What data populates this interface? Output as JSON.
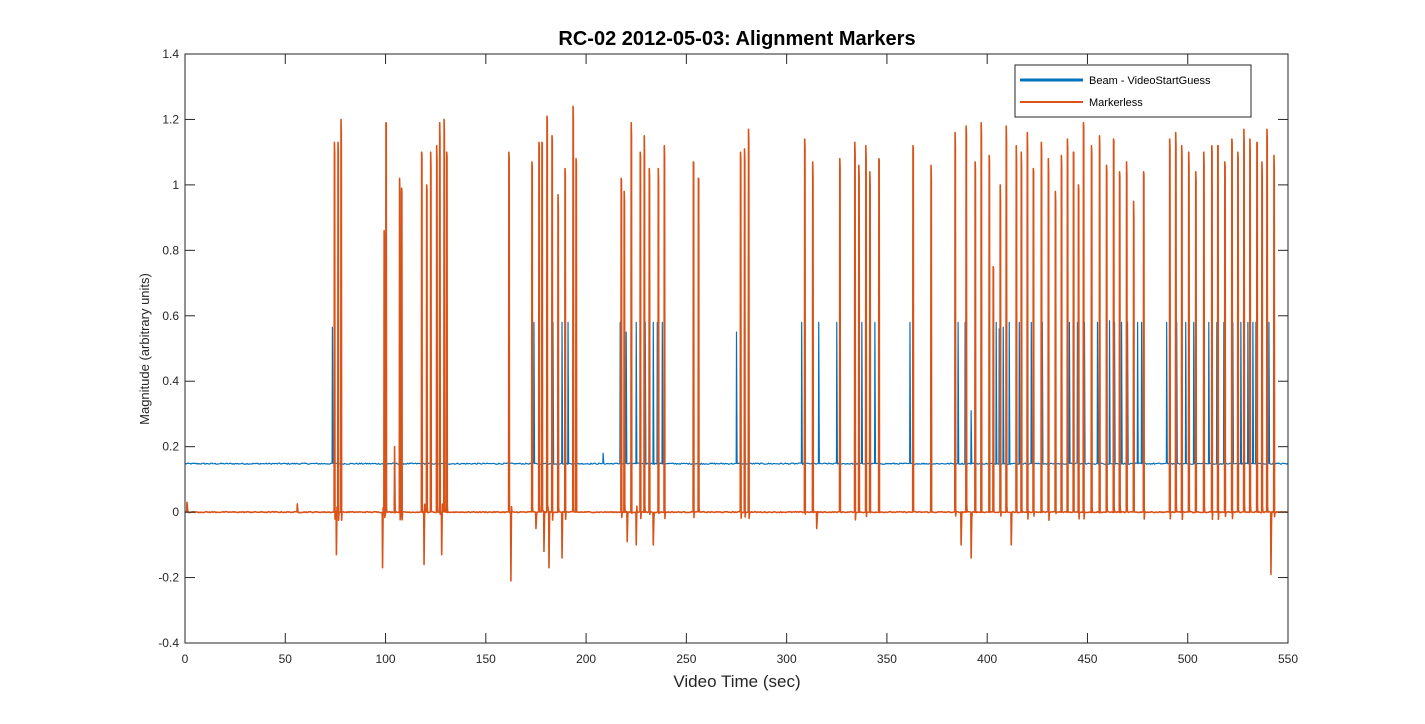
{
  "chart_data": {
    "type": "line",
    "title": "RC-02 2012-05-03: Alignment Markers",
    "xlabel": "Video Time (sec)",
    "ylabel": "Magnitude (arbitrary units)",
    "xlim": [
      0,
      550
    ],
    "ylim": [
      -0.4,
      1.4
    ],
    "xticks": [
      0,
      50,
      100,
      150,
      200,
      250,
      300,
      350,
      400,
      450,
      500,
      550
    ],
    "yticks": [
      -0.4,
      -0.2,
      0,
      0.2,
      0.4,
      0.6,
      0.8,
      1,
      1.2,
      1.4
    ],
    "legend_position": "top-right",
    "grid": false,
    "series": [
      {
        "name": "Beam - VideoStartGuess",
        "color": "#0072BD",
        "baseline": 0.148,
        "pulses": [
          [
            73.5,
            0.565
          ],
          [
            161.5,
            0.53
          ],
          [
            174,
            0.58
          ],
          [
            178,
            0.24
          ],
          [
            183.5,
            0.58
          ],
          [
            188,
            0.58
          ],
          [
            189.5,
            0.58
          ],
          [
            191,
            0.58
          ],
          [
            195,
            0.58
          ],
          [
            208.5,
            0.18
          ],
          [
            217,
            0.58
          ],
          [
            220,
            0.55
          ],
          [
            225,
            0.58
          ],
          [
            229.5,
            0.58
          ],
          [
            233.5,
            0.58
          ],
          [
            235.5,
            0.58
          ],
          [
            238,
            0.58
          ],
          [
            275,
            0.55
          ],
          [
            279,
            0.58
          ],
          [
            281,
            0.58
          ],
          [
            307.5,
            0.58
          ],
          [
            316,
            0.58
          ],
          [
            325,
            0.58
          ],
          [
            334,
            0.58
          ],
          [
            337.5,
            0.58
          ],
          [
            341.5,
            0.585
          ],
          [
            344,
            0.58
          ],
          [
            361.5,
            0.58
          ],
          [
            372,
            0.58
          ],
          [
            385.5,
            0.58
          ],
          [
            389,
            0.58
          ],
          [
            392,
            0.31
          ],
          [
            394,
            0.58
          ],
          [
            404.5,
            0.58
          ],
          [
            406,
            0.56
          ],
          [
            408,
            0.565
          ],
          [
            411,
            0.58
          ],
          [
            416,
            0.58
          ],
          [
            422,
            0.58
          ],
          [
            427.5,
            0.58
          ],
          [
            437,
            0.58
          ],
          [
            441,
            0.58
          ],
          [
            445,
            0.58
          ],
          [
            448.5,
            0.58
          ],
          [
            455,
            0.58
          ],
          [
            461,
            0.585
          ],
          [
            463.5,
            0.58
          ],
          [
            467,
            0.58
          ],
          [
            470,
            0.58
          ],
          [
            473,
            0.58
          ],
          [
            475,
            0.58
          ],
          [
            477,
            0.58
          ],
          [
            489.5,
            0.58
          ],
          [
            494.5,
            0.58
          ],
          [
            499,
            0.58
          ],
          [
            503,
            0.58
          ],
          [
            510.5,
            0.58
          ],
          [
            514.5,
            0.58
          ],
          [
            518,
            0.58
          ],
          [
            522.5,
            0.58
          ],
          [
            526.5,
            0.58
          ],
          [
            530,
            0.58
          ],
          [
            532.5,
            0.58
          ],
          [
            534,
            0.58
          ],
          [
            540.5,
            0.58
          ]
        ]
      },
      {
        "name": "Markerless",
        "color": "#D95319",
        "baseline": 0.0,
        "pulses": [
          [
            1,
            0.03
          ],
          [
            56,
            0.025
          ],
          [
            74.5,
            1.13
          ],
          [
            75.5,
            -0.13
          ],
          [
            76.3,
            1.13
          ],
          [
            77.8,
            1.2
          ],
          [
            98.5,
            -0.17
          ],
          [
            99.3,
            0.86
          ],
          [
            100.2,
            1.19
          ],
          [
            104.5,
            0.2
          ],
          [
            107,
            1.02
          ],
          [
            108,
            0.99
          ],
          [
            118,
            1.1
          ],
          [
            119.2,
            -0.16
          ],
          [
            120.5,
            1.0
          ],
          [
            122.5,
            1.1
          ],
          [
            125.5,
            1.12
          ],
          [
            127,
            1.19
          ],
          [
            128,
            -0.13
          ],
          [
            129.2,
            1.2
          ],
          [
            130.5,
            1.1
          ],
          [
            161.5,
            1.1
          ],
          [
            162.5,
            -0.21
          ],
          [
            173,
            1.07
          ],
          [
            175,
            -0.05
          ],
          [
            176.5,
            1.13
          ],
          [
            178,
            1.13
          ],
          [
            179,
            -0.12
          ],
          [
            180.5,
            1.21
          ],
          [
            181.5,
            -0.17
          ],
          [
            183,
            1.15
          ],
          [
            186,
            0.97
          ],
          [
            188,
            -0.14
          ],
          [
            189.5,
            1.05
          ],
          [
            193.5,
            1.24
          ],
          [
            195,
            1.08
          ],
          [
            217.5,
            1.02
          ],
          [
            219,
            0.98
          ],
          [
            220.5,
            -0.09
          ],
          [
            222.5,
            1.19
          ],
          [
            225,
            -0.1
          ],
          [
            227,
            1.1
          ],
          [
            229,
            1.15
          ],
          [
            231.5,
            1.05
          ],
          [
            233.5,
            -0.1
          ],
          [
            236,
            1.05
          ],
          [
            239,
            1.12
          ],
          [
            253.5,
            1.07
          ],
          [
            256,
            1.02
          ],
          [
            277,
            1.1
          ],
          [
            279,
            1.11
          ],
          [
            281,
            1.17
          ],
          [
            309,
            1.14
          ],
          [
            313,
            1.07
          ],
          [
            315,
            -0.05
          ],
          [
            326.5,
            1.08
          ],
          [
            334,
            1.13
          ],
          [
            336,
            1.06
          ],
          [
            339.5,
            1.12
          ],
          [
            341.5,
            1.04
          ],
          [
            346,
            1.08
          ],
          [
            363,
            1.12
          ],
          [
            372,
            1.06
          ],
          [
            384,
            1.16
          ],
          [
            387,
            -0.1
          ],
          [
            389.5,
            1.18
          ],
          [
            392,
            -0.14
          ],
          [
            394,
            1.07
          ],
          [
            397,
            1.19
          ],
          [
            401,
            1.09
          ],
          [
            403,
            0.75
          ],
          [
            406.5,
            1.0
          ],
          [
            409.5,
            1.18
          ],
          [
            412,
            -0.1
          ],
          [
            414.5,
            1.12
          ],
          [
            417,
            1.1
          ],
          [
            420,
            1.16
          ],
          [
            423,
            1.05
          ],
          [
            427,
            1.13
          ],
          [
            430.5,
            1.08
          ],
          [
            434,
            0.98
          ],
          [
            437,
            1.09
          ],
          [
            440,
            1.14
          ],
          [
            443,
            1.1
          ],
          [
            445.5,
            1.0
          ],
          [
            448,
            1.19
          ],
          [
            452,
            1.12
          ],
          [
            456,
            1.15
          ],
          [
            459.5,
            1.06
          ],
          [
            463,
            1.14
          ],
          [
            466,
            1.04
          ],
          [
            469.5,
            1.07
          ],
          [
            473,
            0.95
          ],
          [
            478,
            1.04
          ],
          [
            491,
            1.14
          ],
          [
            494,
            1.16
          ],
          [
            497,
            1.12
          ],
          [
            500.5,
            1.1
          ],
          [
            504,
            1.04
          ],
          [
            508,
            1.1
          ],
          [
            512,
            1.12
          ],
          [
            515,
            1.12
          ],
          [
            518.5,
            1.07
          ],
          [
            522,
            1.14
          ],
          [
            525,
            1.1
          ],
          [
            528,
            1.17
          ],
          [
            531,
            1.14
          ],
          [
            534.5,
            1.13
          ],
          [
            537,
            1.07
          ],
          [
            539.5,
            1.17
          ],
          [
            541.5,
            -0.19
          ],
          [
            543,
            1.09
          ]
        ]
      }
    ]
  }
}
